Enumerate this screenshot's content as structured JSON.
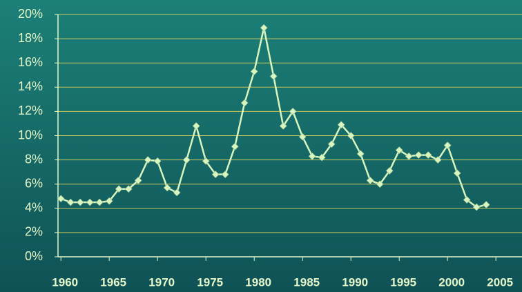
{
  "chart_data": {
    "type": "line",
    "x": [
      1960,
      1961,
      1962,
      1963,
      1964,
      1965,
      1966,
      1967,
      1968,
      1969,
      1970,
      1971,
      1972,
      1973,
      1974,
      1975,
      1976,
      1977,
      1978,
      1979,
      1980,
      1981,
      1982,
      1983,
      1984,
      1985,
      1986,
      1987,
      1988,
      1989,
      1990,
      1991,
      1992,
      1993,
      1994,
      1995,
      1996,
      1997,
      1998,
      1999,
      2000,
      2001,
      2002,
      2003,
      2004
    ],
    "values": [
      4.8,
      4.5,
      4.5,
      4.5,
      4.5,
      4.6,
      5.6,
      5.6,
      6.3,
      8.0,
      7.9,
      5.7,
      5.3,
      8.0,
      10.8,
      7.9,
      6.8,
      6.8,
      9.1,
      12.7,
      15.3,
      18.9,
      14.9,
      10.8,
      12.0,
      9.9,
      8.3,
      8.2,
      9.3,
      10.9,
      10.0,
      8.5,
      6.3,
      6.0,
      7.1,
      8.8,
      8.3,
      8.4,
      8.4,
      8.0,
      9.2,
      6.9,
      4.7,
      4.1,
      4.3
    ],
    "color": "#d8f5c0",
    "xlim": [
      1959.7,
      2007.7
    ],
    "xticks": [
      1960,
      1965,
      1970,
      1975,
      1980,
      1985,
      1990,
      1995,
      2000,
      2005
    ],
    "ylim": [
      0,
      20
    ],
    "yticks": [
      {
        "value": 0,
        "label": "0%"
      },
      {
        "value": 2,
        "label": "2%"
      },
      {
        "value": 4,
        "label": "4%"
      },
      {
        "value": 6,
        "label": "6%"
      },
      {
        "value": 8,
        "label": "8%"
      },
      {
        "value": 10,
        "label": "10%"
      },
      {
        "value": 12,
        "label": "12%"
      },
      {
        "value": 14,
        "label": "14%"
      },
      {
        "value": 16,
        "label": "16%"
      },
      {
        "value": 18,
        "label": "18%"
      },
      {
        "value": 20,
        "label": "20%"
      }
    ],
    "grid": true
  }
}
